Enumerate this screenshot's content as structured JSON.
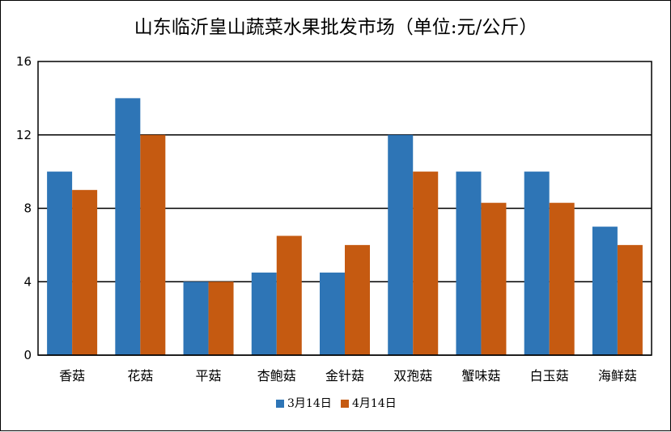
{
  "chart_data": {
    "type": "bar",
    "title": "山东临沂皇山蔬菜水果批发市场（单位:元/公斤）",
    "xlabel": "",
    "ylabel": "",
    "categories": [
      "香菇",
      "花菇",
      "平菇",
      "杏鲍菇",
      "金针菇",
      "双孢菇",
      "蟹味菇",
      "白玉菇",
      "海鲜菇"
    ],
    "series": [
      {
        "name": "3月14日",
        "color": "#2E75B6",
        "values": [
          10,
          14,
          4,
          4.5,
          4.5,
          12,
          10,
          10,
          7
        ]
      },
      {
        "name": "4月14日",
        "color": "#C55A11",
        "values": [
          9,
          12,
          4,
          6.5,
          6,
          10,
          8.3,
          8.3,
          6
        ]
      }
    ],
    "ylim": [
      0,
      16
    ],
    "yticks": [
      0,
      4,
      8,
      12,
      16
    ],
    "grid": true,
    "legend": "bottom"
  }
}
